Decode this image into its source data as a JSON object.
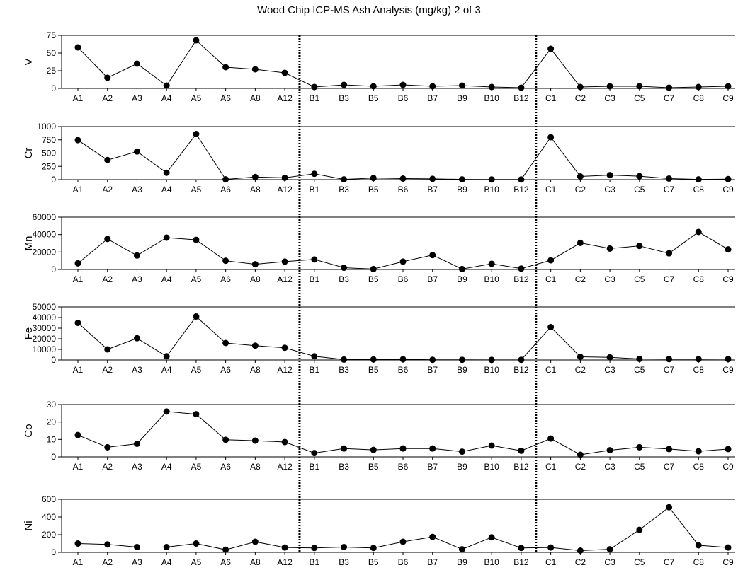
{
  "chart_data": {
    "type": "line",
    "title": "Wood Chip ICP-MS Ash Analysis (mg/kg)  2 of 3",
    "categories": [
      "A1",
      "A2",
      "A3",
      "A4",
      "A5",
      "A6",
      "A8",
      "A12",
      "B1",
      "B3",
      "B5",
      "B6",
      "B7",
      "B9",
      "B10",
      "B12",
      "C1",
      "C2",
      "C3",
      "C5",
      "C7",
      "C8",
      "C9"
    ],
    "group_dividers_after": [
      "A12",
      "B12"
    ],
    "grid": false,
    "legend": "none",
    "series": [
      {
        "name": "V",
        "ylim": [
          0,
          75
        ],
        "yticks": [
          0,
          25,
          50,
          75
        ],
        "values": [
          58,
          15,
          35,
          4,
          68,
          30,
          27,
          22,
          2,
          5,
          3,
          5,
          3,
          4,
          2,
          1,
          56,
          2,
          3,
          3,
          1,
          2,
          3
        ]
      },
      {
        "name": "Cr",
        "ylim": [
          0,
          1000
        ],
        "yticks": [
          0,
          250,
          500,
          750,
          1000
        ],
        "values": [
          745,
          370,
          530,
          130,
          860,
          5,
          50,
          35,
          110,
          5,
          30,
          20,
          15,
          5,
          3,
          3,
          800,
          60,
          85,
          65,
          20,
          5,
          10
        ]
      },
      {
        "name": "Mn",
        "ylim": [
          0,
          60000
        ],
        "yticks": [
          0,
          20000,
          40000,
          60000
        ],
        "values": [
          7000,
          35000,
          16000,
          36500,
          34000,
          10000,
          6000,
          9000,
          11500,
          2000,
          500,
          9000,
          16500,
          500,
          6500,
          1000,
          10500,
          30500,
          24000,
          27000,
          18500,
          43000,
          23000
        ]
      },
      {
        "name": "Fe",
        "ylim": [
          0,
          50000
        ],
        "yticks": [
          0,
          10000,
          20000,
          30000,
          40000,
          50000
        ],
        "values": [
          35000,
          10000,
          20500,
          3500,
          41000,
          16000,
          13500,
          11500,
          3500,
          400,
          500,
          700,
          200,
          200,
          100,
          200,
          31000,
          3000,
          2500,
          1000,
          800,
          800,
          900
        ]
      },
      {
        "name": "Co",
        "ylim": [
          0,
          30
        ],
        "yticks": [
          0,
          10,
          20,
          30
        ],
        "values": [
          12.5,
          5.5,
          7.5,
          26,
          24.5,
          9.8,
          9.3,
          8.5,
          2.2,
          4.8,
          4.0,
          4.8,
          4.8,
          3.0,
          6.5,
          3.5,
          10.5,
          1.2,
          3.8,
          5.5,
          4.5,
          3.2,
          4.5
        ]
      },
      {
        "name": "Ni",
        "ylim": [
          0,
          600
        ],
        "yticks": [
          0,
          200,
          400,
          600
        ],
        "values": [
          100,
          90,
          60,
          60,
          100,
          30,
          120,
          55,
          50,
          60,
          50,
          120,
          175,
          35,
          170,
          50,
          55,
          20,
          35,
          255,
          510,
          80,
          55
        ]
      }
    ]
  }
}
